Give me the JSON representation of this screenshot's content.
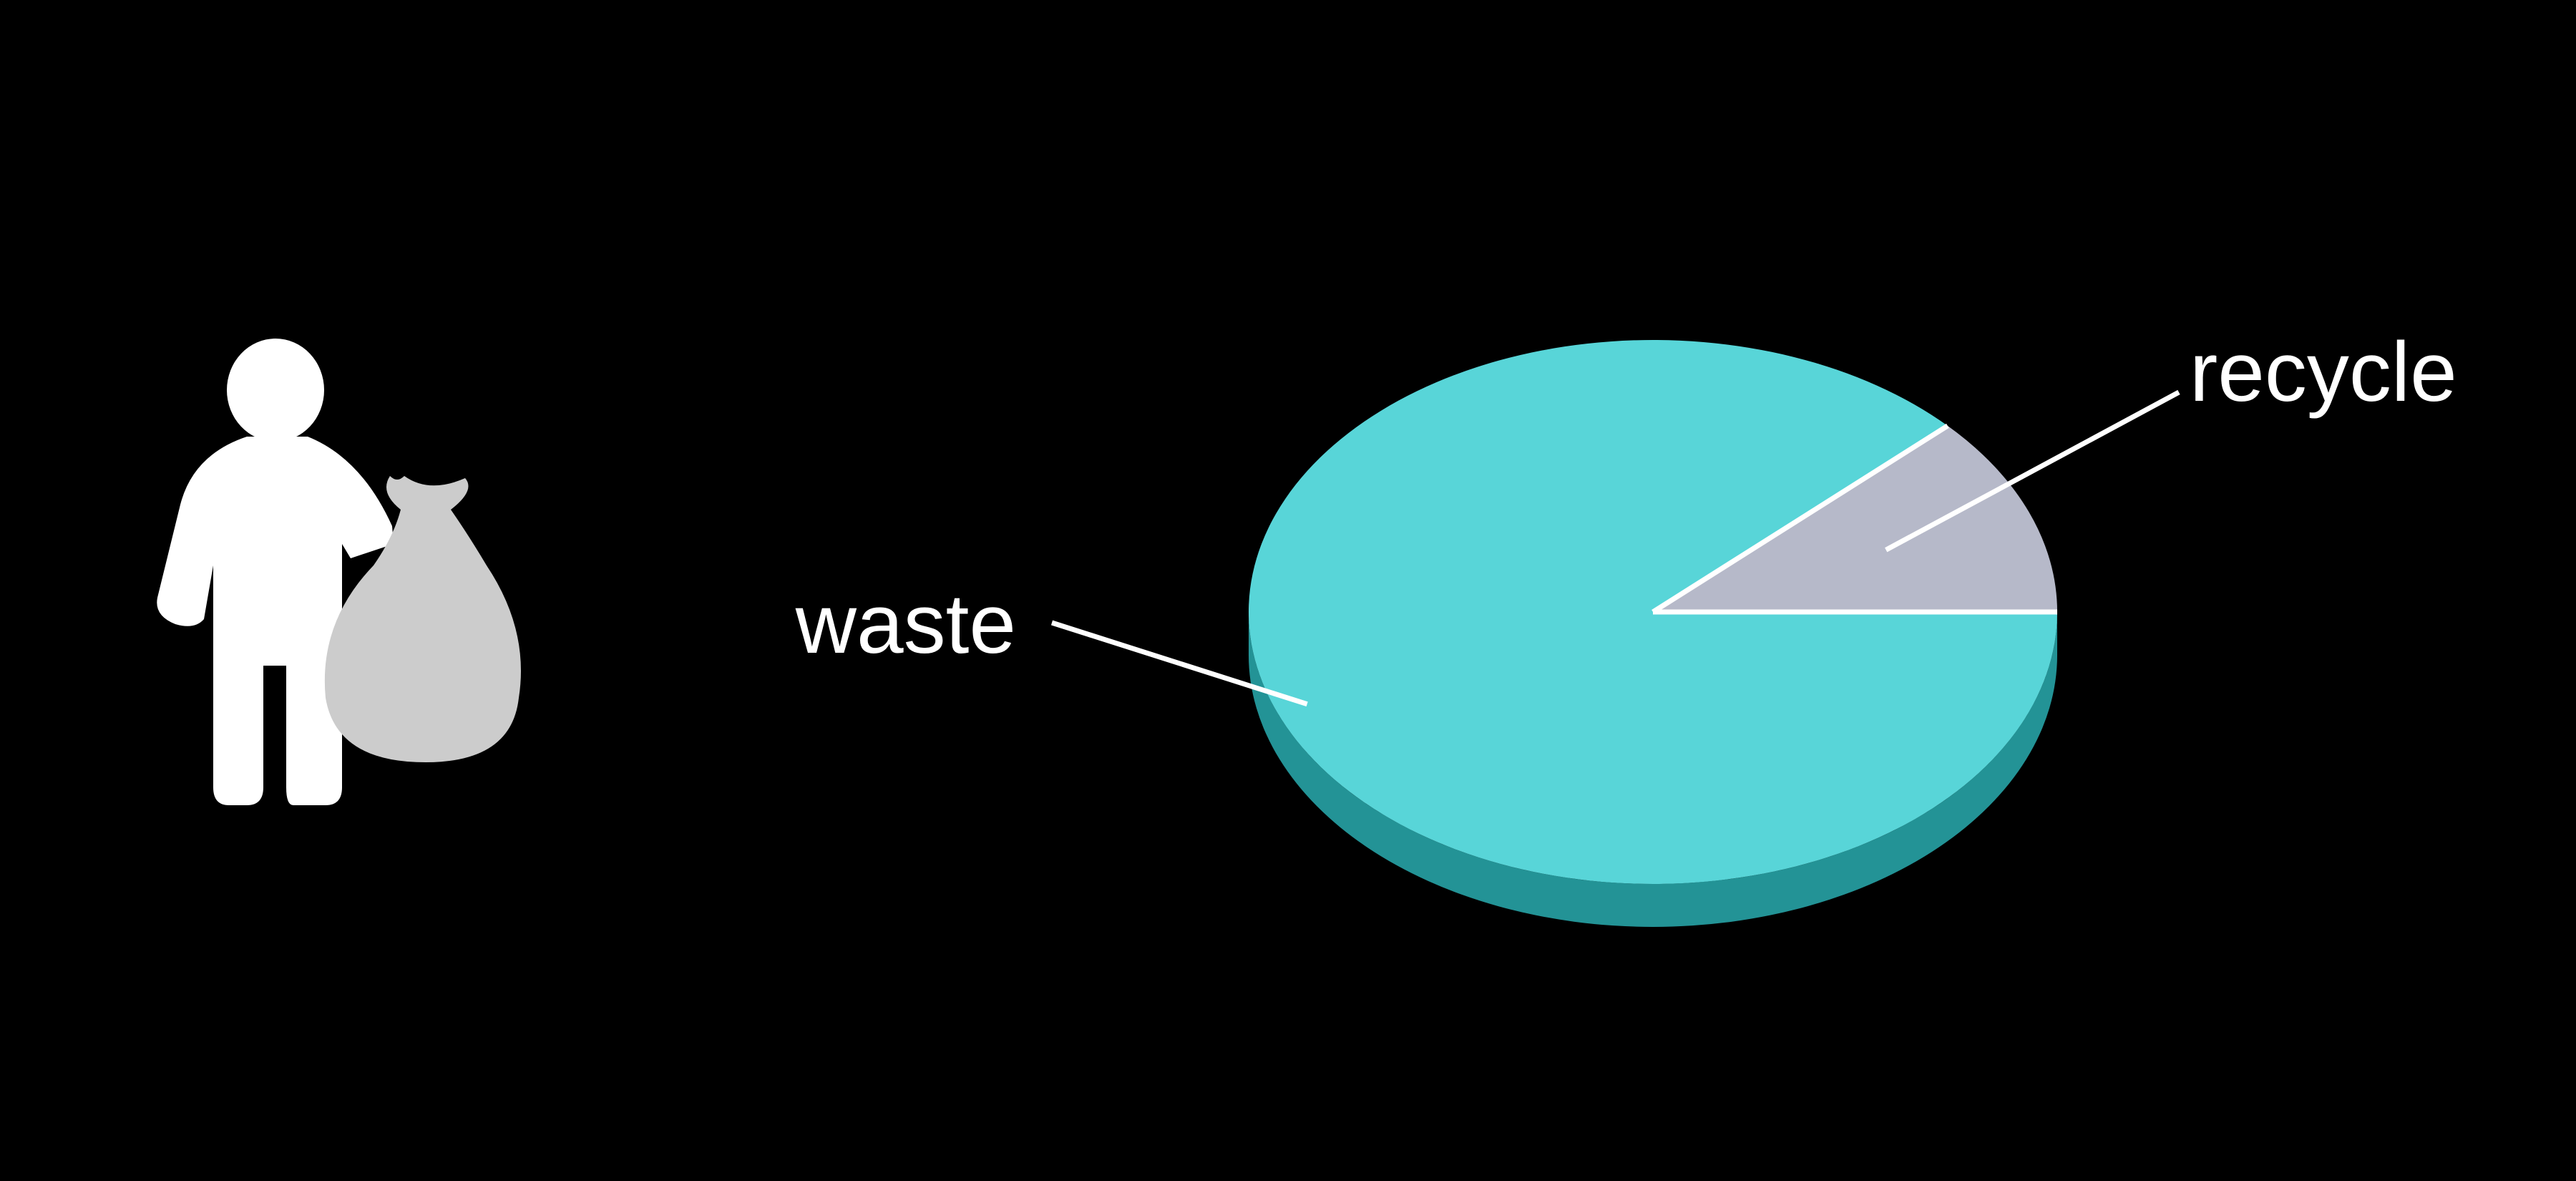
{
  "icon": "person-with-trash-bag-icon",
  "colors": {
    "background": "#000000",
    "waste_top": "#58d5d8",
    "waste_side": "#239396",
    "recycle_top": "#b6b9c9",
    "recycle_side": "#8a8d9c",
    "divider": "#ffffff",
    "person": "#ffffff",
    "bag": "#cccccc"
  },
  "chart_data": {
    "type": "pie",
    "style": "3d",
    "slices": [
      {
        "label": "waste",
        "value": 88
      },
      {
        "label": "recycle",
        "value": 12
      }
    ],
    "title": "",
    "legend": "none"
  }
}
